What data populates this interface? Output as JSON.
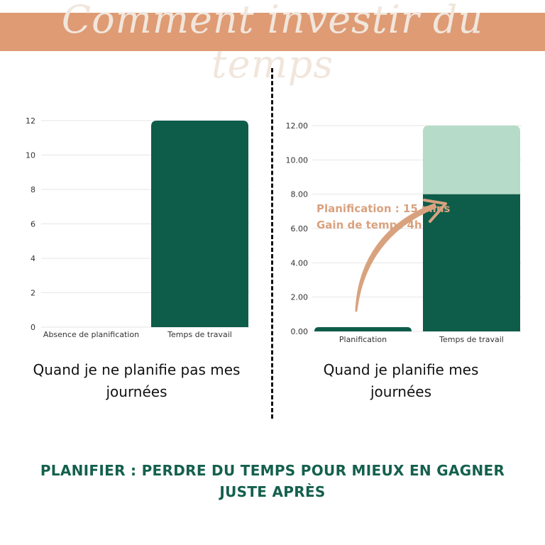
{
  "title": "Comment investir du temps",
  "colors": {
    "banner": "#DE9B74",
    "dark_green": "#0E5C4A",
    "light_green": "#B6DBC8",
    "arrow": "#D9A27F"
  },
  "chart_data": [
    {
      "type": "bar",
      "categories": [
        "Absence de planification",
        "Temps de travail"
      ],
      "values": [
        0,
        12
      ],
      "ylim": [
        0,
        12
      ],
      "yticks": [
        "0",
        "2",
        "4",
        "6",
        "8",
        "10",
        "12"
      ],
      "grid": true,
      "caption": "Quand je ne planifie pas mes journées"
    },
    {
      "type": "bar",
      "stacked": true,
      "categories": [
        "Planification",
        "Temps de travail"
      ],
      "series": [
        {
          "values": [
            0.25,
            8
          ],
          "color": "#0E5C4A"
        },
        {
          "values": [
            0,
            4
          ],
          "color": "#B6DBC8"
        }
      ],
      "ylim": [
        0,
        12
      ],
      "yticks": [
        "0.00",
        "2.00",
        "4.00",
        "6.00",
        "8.00",
        "10.00",
        "12.00"
      ],
      "grid": true,
      "annotation": [
        "Planification : 15 mins",
        "Gain de temps 4h"
      ],
      "caption": "Quand je planifie mes journées"
    }
  ],
  "footer": "PLANIFIER : PERDRE DU TEMPS POUR MIEUX EN GAGNER JUSTE APRÈS"
}
